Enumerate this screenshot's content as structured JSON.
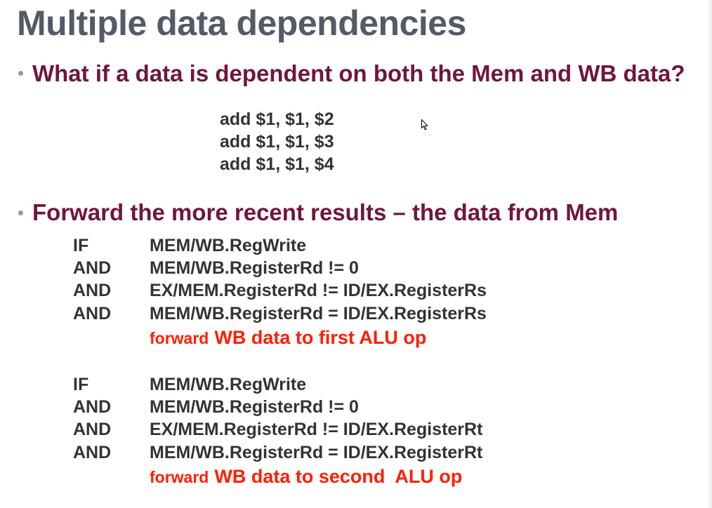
{
  "slide": {
    "title": "Multiple data dependencies",
    "bullets": [
      "What if a data is dependent on both the Mem and WB data?",
      "Forward the more recent results – the data from Mem"
    ],
    "code": [
      "add $1, $1, $2",
      "add $1, $1, $3",
      "add $1, $1, $4"
    ],
    "conditions": [
      {
        "rows": [
          {
            "keyword": "IF",
            "expression": "MEM/WB.RegWrite"
          },
          {
            "keyword": "AND",
            "expression": "MEM/WB.RegisterRd != 0"
          },
          {
            "keyword": "AND",
            "expression": "EX/MEM.RegisterRd != ID/EX.RegisterRs"
          },
          {
            "keyword": "AND",
            "expression": "MEM/WB.RegisterRd = ID/EX.RegisterRs"
          }
        ],
        "action_prefix": "forward",
        "action": "WB data to first ALU op"
      },
      {
        "rows": [
          {
            "keyword": "IF",
            "expression": "MEM/WB.RegWrite"
          },
          {
            "keyword": "AND",
            "expression": "MEM/WB.RegisterRd != 0"
          },
          {
            "keyword": "AND",
            "expression": "EX/MEM.RegisterRd != ID/EX.RegisterRt"
          },
          {
            "keyword": "AND",
            "expression": "MEM/WB.RegisterRd = ID/EX.RegisterRt"
          }
        ],
        "action_prefix": "forward",
        "action": "WB data to second  ALU op"
      }
    ]
  },
  "colors": {
    "title": "#545a66",
    "bullet": "#70163a",
    "body": "#333333",
    "accent": "#ff1e00"
  },
  "icons": {
    "cursor": "mouse-pointer-icon"
  }
}
